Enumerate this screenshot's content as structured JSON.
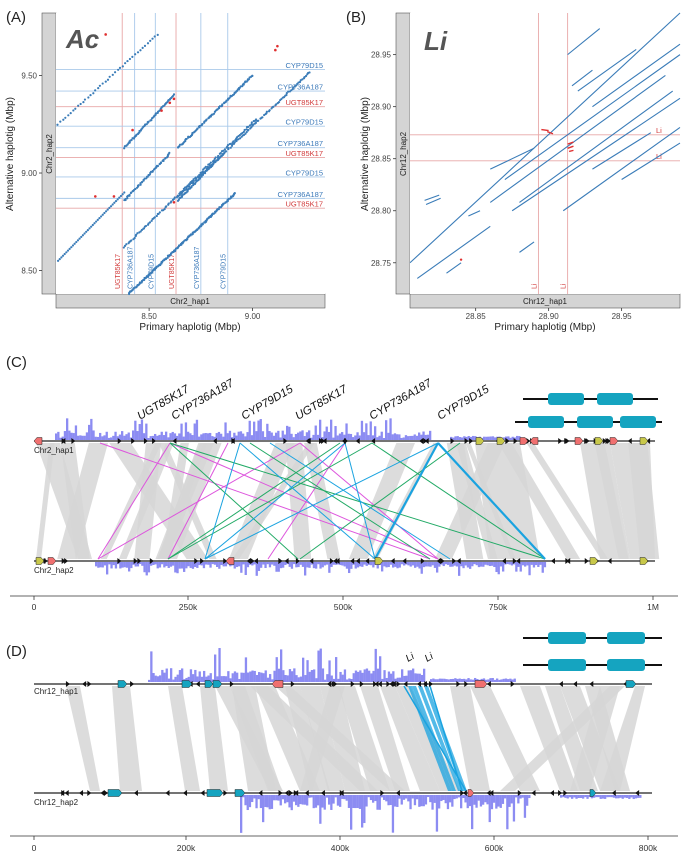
{
  "colors": {
    "grid_blue": "#a9c9ea",
    "grid_red": "#e8a7a7",
    "label_blue": "#3b79b9",
    "label_red": "#d23b3b",
    "dot_blue": "#3a7cb8",
    "dot_red": "#e03030",
    "strip_gray": "#d4d4d4",
    "hist_purple": "#8c8cf2",
    "link_gray": "#d6d6d6",
    "link_magenta": "#dd55dd",
    "link_green": "#22aa66",
    "link_cyan": "#1aa3e0",
    "gene_cyan": "#15a4c0",
    "gene_red": "#f07070",
    "gene_yellow": "#c8c84a"
  },
  "panelA": {
    "tag": "(A)",
    "title": "Ac",
    "strip_y": "Chr2_hap2",
    "strip_x": "Chr2_hap1",
    "x_title": "Primary haplotig (Mbp)",
    "y_title": "Alternative haplotig (Mbp)",
    "x_ticks": [
      {
        "v": 8.5,
        "label": "8.50"
      },
      {
        "v": 9.0,
        "label": "9.00"
      }
    ],
    "y_ticks": [
      {
        "v": 8.5,
        "label": "8.50"
      },
      {
        "v": 9.0,
        "label": "9.00"
      },
      {
        "v": 9.5,
        "label": "9.50"
      }
    ],
    "x_range": [
      8.05,
      9.35
    ],
    "y_range": [
      8.38,
      9.82
    ],
    "vlines": [
      {
        "x": 8.37,
        "label": "UGT85K17",
        "color": "red"
      },
      {
        "x": 8.43,
        "label": "CYP736A187",
        "color": "blue"
      },
      {
        "x": 8.53,
        "label": "CYP79D15",
        "color": "blue"
      },
      {
        "x": 8.63,
        "label": "UGT85K17",
        "color": "red"
      },
      {
        "x": 8.75,
        "label": "CYP736A187",
        "color": "blue"
      },
      {
        "x": 8.88,
        "label": "CYP79D15",
        "color": "blue"
      }
    ],
    "hlines": [
      {
        "y": 9.53,
        "label": "CYP79D15",
        "color": "blue"
      },
      {
        "y": 9.42,
        "label": "CYP736A187",
        "color": "blue"
      },
      {
        "y": 9.34,
        "label": "UGT85K17",
        "color": "red"
      },
      {
        "y": 9.24,
        "label": "CYP79D15",
        "color": "blue"
      },
      {
        "y": 9.13,
        "label": "CYP736A187",
        "color": "blue"
      },
      {
        "y": 9.08,
        "label": "UGT85K17",
        "color": "red"
      },
      {
        "y": 8.98,
        "label": "CYP79D15",
        "color": "blue"
      },
      {
        "y": 8.87,
        "label": "CYP736A187",
        "color": "blue"
      },
      {
        "y": 8.82,
        "label": "UGT85K17",
        "color": "red"
      }
    ]
  },
  "panelB": {
    "tag": "(B)",
    "title": "Li",
    "strip_y": "Chr12_hap2",
    "strip_x": "Chr12_hap1",
    "x_title": "Primary haplotig (Mbp)",
    "y_title": "Alternative haplotig (Mbp)",
    "x_ticks": [
      {
        "v": 28.85,
        "label": "28.85"
      },
      {
        "v": 28.9,
        "label": "28.90"
      },
      {
        "v": 28.95,
        "label": "28.95"
      }
    ],
    "y_ticks": [
      {
        "v": 28.75,
        "label": "28.75"
      },
      {
        "v": 28.8,
        "label": "28.80"
      },
      {
        "v": 28.85,
        "label": "28.85"
      },
      {
        "v": 28.9,
        "label": "28.90"
      },
      {
        "v": 28.95,
        "label": "28.95"
      }
    ],
    "x_range": [
      28.805,
      28.99
    ],
    "y_range": [
      28.72,
      28.99
    ],
    "vlines": [
      {
        "x": 28.893,
        "label": "Li"
      },
      {
        "x": 28.913,
        "label": "Li"
      }
    ],
    "hlines": [
      {
        "y": 28.873,
        "label": "Li"
      },
      {
        "y": 28.848,
        "label": "Li"
      }
    ]
  },
  "panelC": {
    "tag": "(C)",
    "top_label": "Chr2_hap1",
    "bottom_label": "Chr2_hap2",
    "gene_labels": [
      "UGT85K17",
      "CYP736A187",
      "CYP79D15",
      "UGT85K17",
      "CYP736A187",
      "CYP79D15"
    ],
    "x_ticks": [
      "0",
      "250k",
      "500k",
      "750k",
      "1M"
    ]
  },
  "panelD": {
    "tag": "(D)",
    "top_label": "Chr12_hap1",
    "bottom_label": "Chr12_hap2",
    "gene_labels": [
      "Li",
      "Li"
    ],
    "x_ticks": [
      "0",
      "200k",
      "400k",
      "600k",
      "800k"
    ]
  }
}
